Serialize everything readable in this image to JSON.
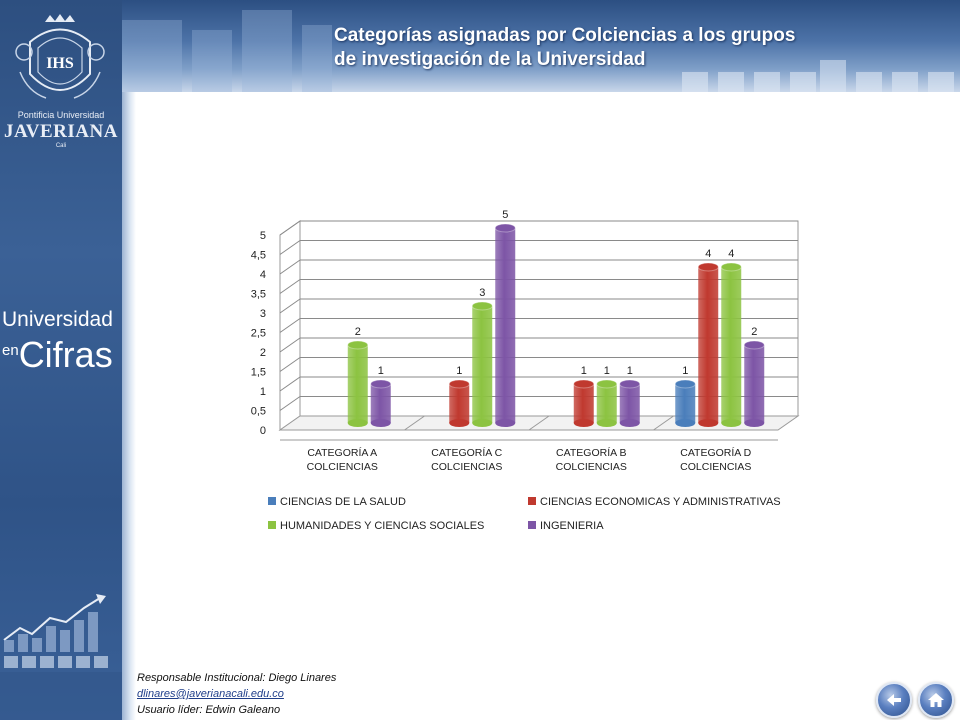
{
  "header": {
    "title_line1": "Categorías asignadas por Colciencias a los grupos",
    "title_line2": "de investigación de la Universidad"
  },
  "sidebar": {
    "crest_initials": "IHS",
    "uni_line1": "Pontificia Universidad",
    "uni_line2": "JAVERIANA",
    "uni_line3": "Cali",
    "cifras_line1": "Universidad",
    "cifras_en": "en",
    "cifras_line2": "Cifras"
  },
  "footer": {
    "responsable": "Responsable Institucional: Diego Linares",
    "email": "dlinares@javerianacali.edu.co",
    "usuario": "Usuario líder: Edwin Galeano"
  },
  "nav": {
    "back_icon": "back-arrow-icon",
    "home_icon": "home-icon"
  },
  "colors": {
    "salud": "#4a7ebb",
    "economicas": "#c0392f",
    "humanidades": "#8cc341",
    "ingenieria": "#7d55a6"
  },
  "chart_data": {
    "type": "bar",
    "categories": [
      "CATEGORÍA A COLCIENCIAS",
      "CATEGORÍA C COLCIENCIAS",
      "CATEGORÍA B COLCIENCIAS",
      "CATEGORÍA D COLCIENCIAS"
    ],
    "category_lines": [
      [
        "CATEGORÍA A",
        "COLCIENCIAS"
      ],
      [
        "CATEGORÍA C",
        "COLCIENCIAS"
      ],
      [
        "CATEGORÍA B",
        "COLCIENCIAS"
      ],
      [
        "CATEGORÍA D",
        "COLCIENCIAS"
      ]
    ],
    "series": [
      {
        "name": "CIENCIAS DE LA SALUD",
        "color": "#4a7ebb",
        "values": [
          null,
          null,
          null,
          1
        ]
      },
      {
        "name": "CIENCIAS ECONOMICAS Y ADMINISTRATIVAS",
        "color": "#c0392f",
        "values": [
          null,
          1,
          1,
          4
        ]
      },
      {
        "name": "HUMANIDADES Y CIENCIAS SOCIALES",
        "color": "#8cc341",
        "values": [
          2,
          3,
          1,
          4
        ]
      },
      {
        "name": "INGENIERIA",
        "color": "#7d55a6",
        "values": [
          1,
          5,
          1,
          2
        ]
      }
    ],
    "yticks": [
      "0",
      "0,5",
      "1",
      "1,5",
      "2",
      "2,5",
      "3",
      "3,5",
      "4",
      "4,5",
      "5"
    ],
    "ylim": [
      0,
      5
    ],
    "grid": true,
    "legend_position": "bottom"
  }
}
